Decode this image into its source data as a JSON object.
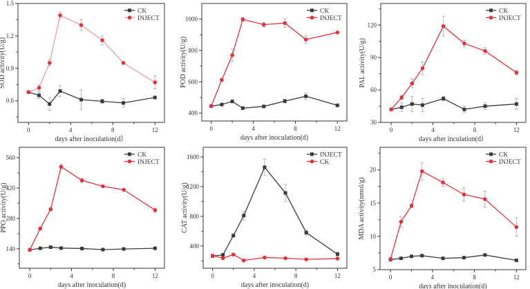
{
  "colors": {
    "red": "#e2333d",
    "black": "#3a3a3a",
    "pink_line": "#eaa0aa",
    "err": "#aaaaaa"
  },
  "chart_data": [
    {
      "type": "line",
      "title": "",
      "xlabel": "days after inoculation(d）",
      "ylabel": "SOD activity(U/g)",
      "x": [
        0,
        1,
        2,
        3,
        5,
        7,
        9,
        12
      ],
      "xlim": [
        -1,
        12.9
      ],
      "ylim": [
        0.4,
        1.5
      ],
      "xticks": [
        0,
        4,
        8,
        12
      ],
      "yticks": [
        0.6,
        0.9,
        1.2,
        1.5
      ],
      "ytick_labels": [
        "0.6",
        "0.9",
        "1.2",
        "1.5"
      ],
      "legend_position": "top-right",
      "series": [
        {
          "name": "CK",
          "color": "#3a3a3a",
          "marker": "square",
          "values": [
            0.68,
            0.65,
            0.57,
            0.69,
            0.61,
            0.595,
            0.58,
            0.63
          ],
          "err": [
            0.01,
            0.03,
            0.06,
            0.05,
            0.09,
            0.02,
            0.04,
            0.01
          ]
        },
        {
          "name": "INJECT",
          "color": "#e2333d",
          "line_color": "#eaa0aa",
          "marker": "circle",
          "values": [
            0.68,
            0.72,
            0.95,
            1.39,
            1.3,
            1.16,
            0.95,
            0.77
          ],
          "err": [
            0.01,
            0.03,
            0.03,
            0.03,
            0.05,
            0.04,
            0.01,
            0.06
          ]
        }
      ]
    },
    {
      "type": "line",
      "title": "",
      "xlabel": "days after inoculation(d)",
      "ylabel": "POD activity(U/g)",
      "x": [
        0,
        1,
        2,
        3,
        5,
        7,
        9,
        12
      ],
      "xlim": [
        -0.9,
        12.9
      ],
      "ylim": [
        350,
        1100
      ],
      "xticks": [
        0,
        4,
        8,
        12
      ],
      "yticks": [
        400,
        600,
        800,
        1000
      ],
      "ytick_labels": [
        "400",
        "600",
        "800",
        "1000"
      ],
      "legend_position": "top-right",
      "series": [
        {
          "name": "CK",
          "color": "#3a3a3a",
          "marker": "square",
          "values": [
            445,
            455,
            475,
            432,
            443,
            477,
            508,
            450
          ],
          "err": [
            5,
            8,
            8,
            6,
            5,
            12,
            22,
            6
          ]
        },
        {
          "name": "INJECT",
          "color": "#e2333d",
          "marker": "circle",
          "values": [
            445,
            612,
            770,
            998,
            965,
            975,
            870,
            915
          ],
          "err": [
            5,
            10,
            40,
            12,
            15,
            28,
            25,
            6
          ]
        }
      ]
    },
    {
      "type": "line",
      "title": "",
      "xlabel": "days after inculation(d）",
      "ylabel": "PAL activity(U/g)",
      "x": [
        0,
        1,
        2,
        3,
        5,
        7,
        9,
        12
      ],
      "xlim": [
        -1,
        12.9
      ],
      "ylim": [
        30,
        140
      ],
      "xticks": [
        0,
        4,
        8,
        12
      ],
      "yticks": [
        30,
        60,
        90,
        120
      ],
      "ytick_labels": [
        "30",
        "60",
        "90",
        "120"
      ],
      "legend_position": "top-right",
      "series": [
        {
          "name": "CK",
          "color": "#3a3a3a",
          "marker": "square",
          "values": [
            42,
            44,
            47,
            46,
            52,
            42,
            45,
            47
          ],
          "err": [
            1,
            4,
            7,
            6,
            2,
            3,
            3,
            5
          ]
        },
        {
          "name": "INJECT",
          "color": "#e2333d",
          "marker": "circle",
          "values": [
            42,
            53,
            66,
            80,
            119,
            103,
            96,
            76
          ],
          "err": [
            1,
            2,
            4,
            6,
            9,
            3,
            3,
            2
          ]
        }
      ]
    },
    {
      "type": "line",
      "title": "",
      "xlabel": "days after inoculation(d)",
      "ylabel": "PPO activity(U/g)",
      "x": [
        0,
        1,
        2,
        3,
        5,
        7,
        9,
        12
      ],
      "xlim": [
        -1,
        12.9
      ],
      "ylim": [
        50,
        608
      ],
      "xticks": [
        0,
        4,
        8,
        12
      ],
      "yticks": [
        140,
        280,
        420,
        560
      ],
      "ytick_labels": [
        "140",
        "280",
        "420",
        "560"
      ],
      "legend_position": "top-right",
      "series": [
        {
          "name": "CK",
          "color": "#3a3a3a",
          "marker": "square",
          "values": [
            135,
            142,
            147,
            143,
            141,
            136,
            139,
            142
          ],
          "err": [
            2,
            3,
            3,
            2,
            2,
            2,
            2,
            2
          ]
        },
        {
          "name": "INJECT",
          "color": "#e2333d",
          "marker": "circle",
          "values": [
            135,
            233,
            322,
            518,
            455,
            428,
            412,
            318
          ],
          "err": [
            3,
            5,
            8,
            12,
            10,
            4,
            4,
            10
          ]
        }
      ]
    },
    {
      "type": "line",
      "title": "",
      "xlabel": "days after inoculation(d)",
      "ylabel": "CAT activity(U/g)",
      "x": [
        0,
        1,
        2,
        3,
        5,
        7,
        9,
        12
      ],
      "xlim": [
        -0.9,
        12.9
      ],
      "ylim": [
        100,
        1730
      ],
      "xticks": [
        0,
        4,
        8,
        12
      ],
      "yticks": [
        400,
        800,
        1200,
        1600
      ],
      "ytick_labels": [
        "400",
        "800",
        "1200",
        "1600"
      ],
      "legend_position": "top-right",
      "series": [
        {
          "name": "INJECT",
          "color": "#3a3a3a",
          "marker": "square",
          "values": [
            265,
            280,
            540,
            810,
            1460,
            1115,
            580,
            290
          ],
          "err": [
            10,
            10,
            15,
            60,
            110,
            115,
            35,
            25
          ]
        },
        {
          "name": "CK",
          "color": "#e2333d",
          "marker": "circle",
          "values": [
            270,
            235,
            285,
            205,
            245,
            235,
            220,
            230
          ],
          "err": [
            5,
            5,
            5,
            5,
            5,
            5,
            5,
            5
          ]
        }
      ]
    },
    {
      "type": "line",
      "title": "",
      "xlabel": "days after inoculation(d)",
      "ylabel": "MDA activity(nmol/g)",
      "x": [
        0,
        1,
        2,
        3,
        5,
        7,
        9,
        12
      ],
      "xlim": [
        -1,
        12.9
      ],
      "ylim": [
        5,
        23.4
      ],
      "xticks": [
        0,
        4,
        8,
        12
      ],
      "yticks": [
        5,
        10,
        15,
        20
      ],
      "ytick_labels": [
        "5",
        "10",
        "15",
        "20"
      ],
      "legend_position": "top-right",
      "series": [
        {
          "name": "CK",
          "color": "#3a3a3a",
          "marker": "square",
          "values": [
            6.5,
            6.7,
            7.0,
            7.1,
            6.7,
            6.8,
            7.2,
            6.4
          ],
          "err": [
            0.1,
            0.1,
            0.1,
            0.1,
            0.1,
            0.1,
            0.1,
            0.1
          ]
        },
        {
          "name": "INJECT",
          "color": "#e2333d",
          "marker": "circle",
          "values": [
            6.6,
            12.2,
            14.6,
            19.8,
            18.1,
            16.3,
            15.6,
            11.4
          ],
          "err": [
            0.2,
            0.8,
            0.3,
            1.3,
            0.6,
            1.0,
            1.2,
            1.4
          ]
        }
      ]
    }
  ]
}
